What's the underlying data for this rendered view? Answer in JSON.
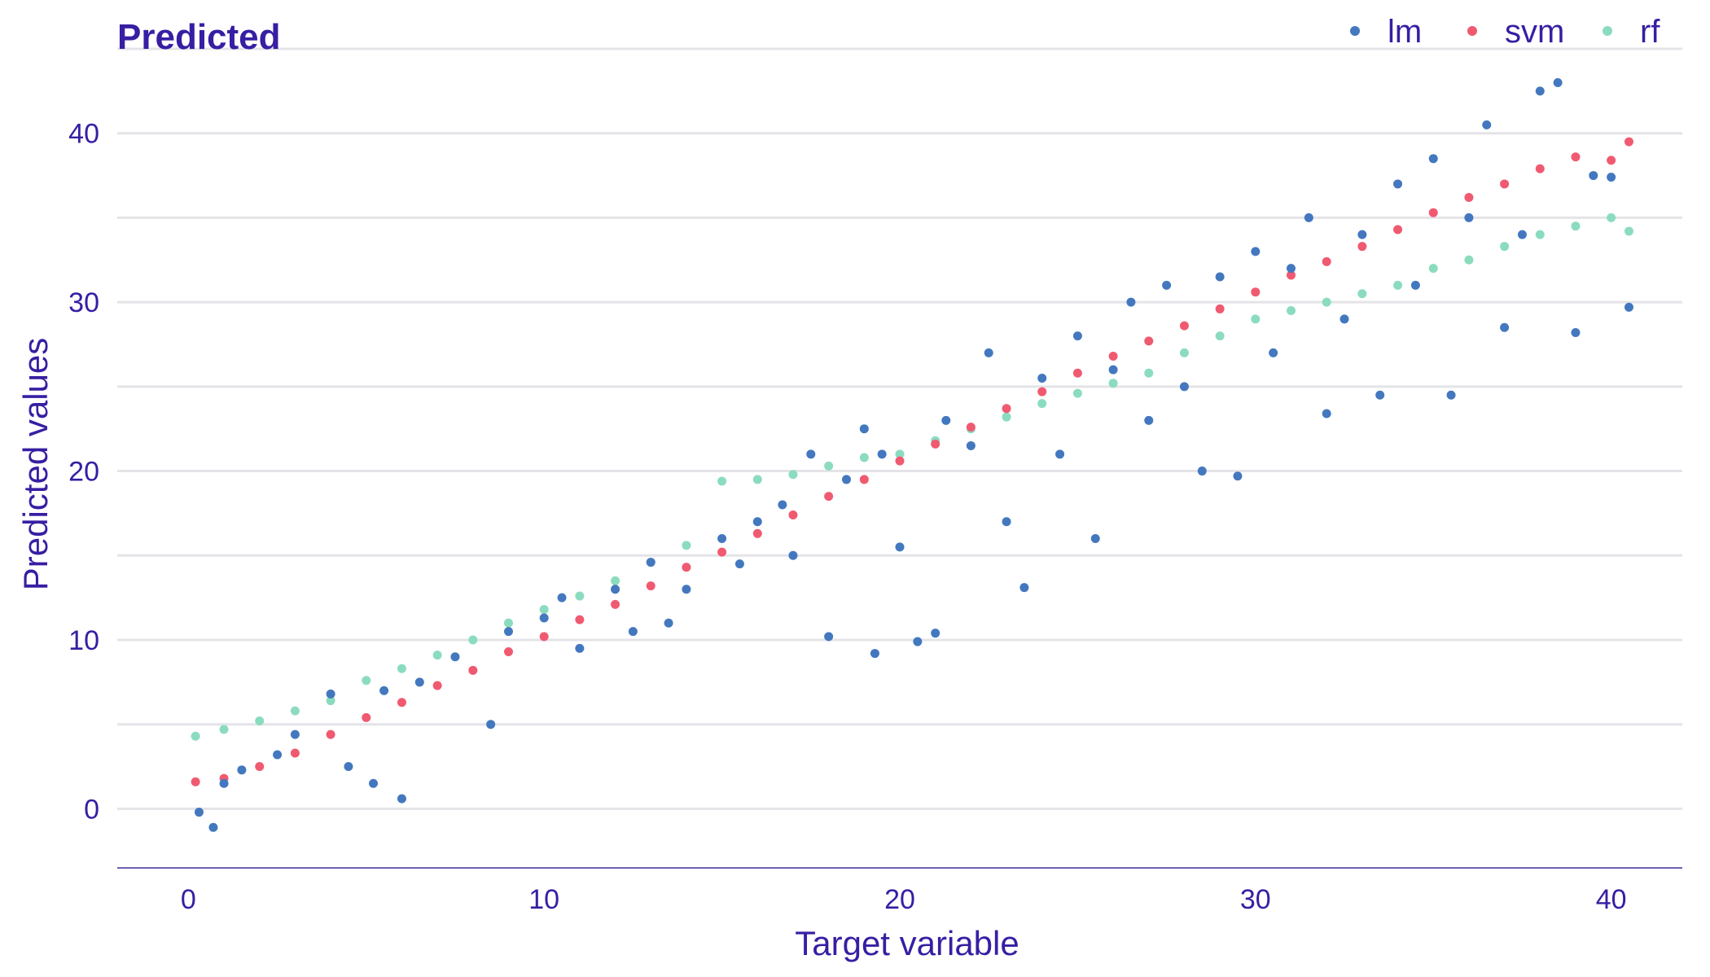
{
  "chart_data": {
    "type": "scatter",
    "title": "Predicted",
    "xlabel": "Target variable",
    "ylabel": "Predicted values",
    "xlim": [
      -2,
      42
    ],
    "ylim": [
      -3.5,
      45
    ],
    "x_ticks": [
      "0",
      "10",
      "20",
      "30",
      "40"
    ],
    "y_ticks": [
      "0",
      "10",
      "20",
      "30",
      "40"
    ],
    "grid": "horizontal major and minor",
    "legend_position": "top-right",
    "colors": {
      "text": "#371ea3",
      "grid": "#e4e4e8",
      "axis_line": "#6e63b2"
    },
    "series": [
      {
        "name": "lm",
        "color": "#4378bf",
        "values": [
          [
            0.3,
            -0.2
          ],
          [
            0.7,
            -1.1
          ],
          [
            1.0,
            1.5
          ],
          [
            1.5,
            2.3
          ],
          [
            2.5,
            3.2
          ],
          [
            3.0,
            4.4
          ],
          [
            4.0,
            6.8
          ],
          [
            4.5,
            2.5
          ],
          [
            5.2,
            1.5
          ],
          [
            5.5,
            7.0
          ],
          [
            6.0,
            0.6
          ],
          [
            6.5,
            7.5
          ],
          [
            7.5,
            9.0
          ],
          [
            8.5,
            5.0
          ],
          [
            9.0,
            10.5
          ],
          [
            10.0,
            11.3
          ],
          [
            10.5,
            12.5
          ],
          [
            11.0,
            9.5
          ],
          [
            12.0,
            13.0
          ],
          [
            12.5,
            10.5
          ],
          [
            13.0,
            14.6
          ],
          [
            13.5,
            11.0
          ],
          [
            14.0,
            13.0
          ],
          [
            15.0,
            16.0
          ],
          [
            15.5,
            14.5
          ],
          [
            16.0,
            17.0
          ],
          [
            16.7,
            18.0
          ],
          [
            17.0,
            15.0
          ],
          [
            17.5,
            21.0
          ],
          [
            18.0,
            10.2
          ],
          [
            18.5,
            19.5
          ],
          [
            19.0,
            22.5
          ],
          [
            19.3,
            9.2
          ],
          [
            19.5,
            21.0
          ],
          [
            20.0,
            15.5
          ],
          [
            20.5,
            9.9
          ],
          [
            21.0,
            10.4
          ],
          [
            21.3,
            23.0
          ],
          [
            22.0,
            21.5
          ],
          [
            22.5,
            27.0
          ],
          [
            23.0,
            17.0
          ],
          [
            23.5,
            13.1
          ],
          [
            24.0,
            25.5
          ],
          [
            24.5,
            21.0
          ],
          [
            25.0,
            28.0
          ],
          [
            25.5,
            16.0
          ],
          [
            26.0,
            26.0
          ],
          [
            26.5,
            30.0
          ],
          [
            27.0,
            23.0
          ],
          [
            27.5,
            31.0
          ],
          [
            28.0,
            25.0
          ],
          [
            28.5,
            20.0
          ],
          [
            29.0,
            31.5
          ],
          [
            29.5,
            19.7
          ],
          [
            30.0,
            33.0
          ],
          [
            30.5,
            27.0
          ],
          [
            31.0,
            32.0
          ],
          [
            31.5,
            35.0
          ],
          [
            32.0,
            23.4
          ],
          [
            32.5,
            29.0
          ],
          [
            33.0,
            34.0
          ],
          [
            33.5,
            24.5
          ],
          [
            34.0,
            37.0
          ],
          [
            34.5,
            31.0
          ],
          [
            35.0,
            38.5
          ],
          [
            35.5,
            24.5
          ],
          [
            36.0,
            35.0
          ],
          [
            36.5,
            40.5
          ],
          [
            37.0,
            28.5
          ],
          [
            37.5,
            34.0
          ],
          [
            38.0,
            42.5
          ],
          [
            38.5,
            43.0
          ],
          [
            39.0,
            28.2
          ],
          [
            39.5,
            37.5
          ],
          [
            40.0,
            37.4
          ],
          [
            40.5,
            29.7
          ]
        ]
      },
      {
        "name": "svm",
        "color": "#f05a71",
        "values": [
          [
            0.2,
            1.6
          ],
          [
            1.0,
            1.8
          ],
          [
            2.0,
            2.5
          ],
          [
            3.0,
            3.3
          ],
          [
            4.0,
            4.4
          ],
          [
            5.0,
            5.4
          ],
          [
            6.0,
            6.3
          ],
          [
            7.0,
            7.3
          ],
          [
            8.0,
            8.2
          ],
          [
            9.0,
            9.3
          ],
          [
            10.0,
            10.2
          ],
          [
            11.0,
            11.2
          ],
          [
            12.0,
            12.1
          ],
          [
            13.0,
            13.2
          ],
          [
            14.0,
            14.3
          ],
          [
            15.0,
            15.2
          ],
          [
            16.0,
            16.3
          ],
          [
            17.0,
            17.4
          ],
          [
            18.0,
            18.5
          ],
          [
            19.0,
            19.5
          ],
          [
            20.0,
            20.6
          ],
          [
            21.0,
            21.6
          ],
          [
            22.0,
            22.6
          ],
          [
            23.0,
            23.7
          ],
          [
            24.0,
            24.7
          ],
          [
            25.0,
            25.8
          ],
          [
            26.0,
            26.8
          ],
          [
            27.0,
            27.7
          ],
          [
            28.0,
            28.6
          ],
          [
            29.0,
            29.6
          ],
          [
            30.0,
            30.6
          ],
          [
            31.0,
            31.6
          ],
          [
            32.0,
            32.4
          ],
          [
            33.0,
            33.3
          ],
          [
            34.0,
            34.3
          ],
          [
            35.0,
            35.3
          ],
          [
            36.0,
            36.2
          ],
          [
            37.0,
            37.0
          ],
          [
            38.0,
            37.9
          ],
          [
            39.0,
            38.6
          ],
          [
            40.0,
            38.4
          ],
          [
            40.5,
            39.5
          ]
        ]
      },
      {
        "name": "rf",
        "color": "#8bdcbe",
        "values": [
          [
            0.2,
            4.3
          ],
          [
            1.0,
            4.7
          ],
          [
            2.0,
            5.2
          ],
          [
            3.0,
            5.8
          ],
          [
            4.0,
            6.4
          ],
          [
            5.0,
            7.6
          ],
          [
            6.0,
            8.3
          ],
          [
            7.0,
            9.1
          ],
          [
            8.0,
            10.0
          ],
          [
            9.0,
            11.0
          ],
          [
            10.0,
            11.8
          ],
          [
            11.0,
            12.6
          ],
          [
            12.0,
            13.5
          ],
          [
            13.0,
            14.6
          ],
          [
            14.0,
            15.6
          ],
          [
            15.0,
            19.4
          ],
          [
            16.0,
            19.5
          ],
          [
            17.0,
            19.8
          ],
          [
            18.0,
            20.3
          ],
          [
            19.0,
            20.8
          ],
          [
            20.0,
            21.0
          ],
          [
            21.0,
            21.8
          ],
          [
            22.0,
            22.5
          ],
          [
            23.0,
            23.2
          ],
          [
            24.0,
            24.0
          ],
          [
            25.0,
            24.6
          ],
          [
            26.0,
            25.2
          ],
          [
            27.0,
            25.8
          ],
          [
            28.0,
            27.0
          ],
          [
            29.0,
            28.0
          ],
          [
            30.0,
            29.0
          ],
          [
            31.0,
            29.5
          ],
          [
            32.0,
            30.0
          ],
          [
            33.0,
            30.5
          ],
          [
            34.0,
            31.0
          ],
          [
            35.0,
            32.0
          ],
          [
            36.0,
            32.5
          ],
          [
            37.0,
            33.3
          ],
          [
            38.0,
            34.0
          ],
          [
            39.0,
            34.5
          ],
          [
            40.0,
            35.0
          ],
          [
            40.5,
            34.2
          ]
        ]
      }
    ]
  }
}
